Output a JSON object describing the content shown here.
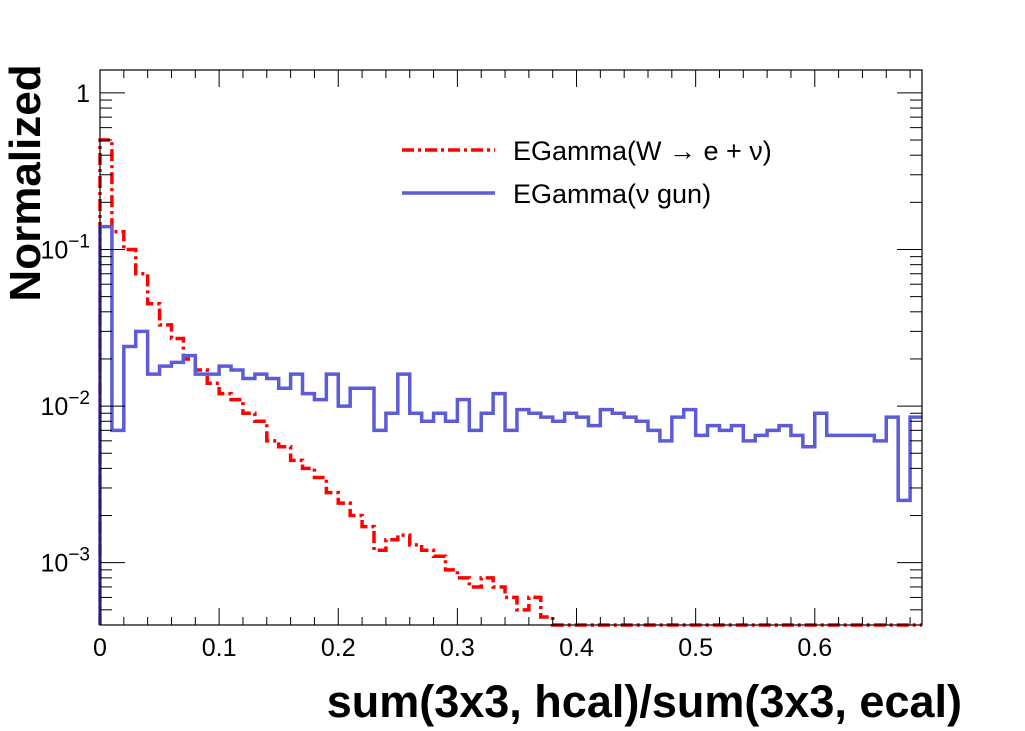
{
  "chart_data": {
    "type": "line",
    "subtype": "step-histogram",
    "xlabel": "sum(3x3, hcal)/sum(3x3, ecal)",
    "ylabel": "Normalized",
    "yscale": "log",
    "xlim": [
      0,
      0.69
    ],
    "ylim": [
      0.0004,
      1.4
    ],
    "bin_width": 0.01,
    "x_ticks": [
      {
        "value": 0,
        "label": "0"
      },
      {
        "value": 0.1,
        "label": "0.1"
      },
      {
        "value": 0.2,
        "label": "0.2"
      },
      {
        "value": 0.3,
        "label": "0.3"
      },
      {
        "value": 0.4,
        "label": "0.4"
      },
      {
        "value": 0.5,
        "label": "0.5"
      },
      {
        "value": 0.6,
        "label": "0.6"
      }
    ],
    "y_ticks": [
      {
        "value": 1,
        "base": "1",
        "exp": ""
      },
      {
        "value": 0.1,
        "base": "10",
        "exp": "−1"
      },
      {
        "value": 0.01,
        "base": "10",
        "exp": "−2"
      },
      {
        "value": 0.001,
        "base": "10",
        "exp": "−3"
      }
    ],
    "legend_position": "top-right",
    "series": [
      {
        "name": "EGamma(W → e + ν)",
        "color": "#ff0000",
        "line_style": "dash-dot",
        "values": [
          0.5,
          0.13,
          0.1,
          0.07,
          0.045,
          0.033,
          0.027,
          0.02,
          0.017,
          0.014,
          0.012,
          0.011,
          0.009,
          0.008,
          0.006,
          0.0055,
          0.0045,
          0.004,
          0.0035,
          0.0028,
          0.0024,
          0.002,
          0.0017,
          0.0012,
          0.0014,
          0.0015,
          0.0013,
          0.0012,
          0.0011,
          0.0009,
          0.0008,
          0.0007,
          0.0008,
          0.0007,
          0.0006,
          0.0005,
          0.0006,
          0.00045,
          0.0004,
          0.0004,
          0.0004,
          0.0004,
          0.0004,
          0.0004,
          0.0004,
          0.0004,
          0.0004,
          0.0004,
          0.0004,
          0.0004,
          0.0004,
          0.0004,
          0.0004,
          0.0004,
          0.0004,
          0.0004,
          0.0004,
          0.0004,
          0.0004,
          0.0004,
          0.0004,
          0.0004,
          0.0004,
          0.0004,
          0.0004,
          0.0004,
          0.0004,
          0.0004,
          0.0004
        ]
      },
      {
        "name": "EGamma(ν gun)",
        "color": "#5c5cd6",
        "line_style": "solid",
        "values": [
          0.14,
          0.007,
          0.024,
          0.03,
          0.016,
          0.018,
          0.019,
          0.021,
          0.016,
          0.016,
          0.018,
          0.017,
          0.015,
          0.016,
          0.015,
          0.013,
          0.016,
          0.012,
          0.011,
          0.016,
          0.01,
          0.013,
          0.013,
          0.007,
          0.009,
          0.016,
          0.009,
          0.008,
          0.009,
          0.008,
          0.011,
          0.007,
          0.009,
          0.012,
          0.007,
          0.0095,
          0.009,
          0.0085,
          0.008,
          0.009,
          0.0085,
          0.0075,
          0.0095,
          0.009,
          0.0085,
          0.008,
          0.007,
          0.006,
          0.0085,
          0.0095,
          0.0065,
          0.0075,
          0.007,
          0.0075,
          0.006,
          0.0065,
          0.007,
          0.0075,
          0.0065,
          0.0055,
          0.009,
          0.0065,
          0.0065,
          0.0065,
          0.0065,
          0.006,
          0.0085,
          0.0025,
          0.0085
        ]
      }
    ]
  }
}
